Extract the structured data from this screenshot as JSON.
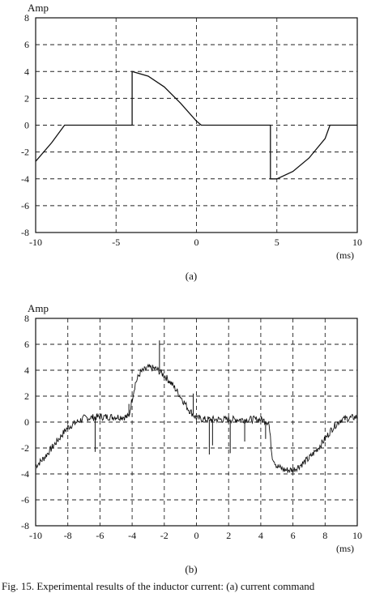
{
  "chart_data": [
    {
      "type": "line",
      "id": "a",
      "ylabel": "Amp",
      "xunit": "(ms)",
      "subcaption": "(a)",
      "xlim": [
        -10,
        10
      ],
      "ylim": [
        -8,
        8
      ],
      "xticks": [
        -10,
        -5,
        0,
        5,
        10
      ],
      "yticks": [
        8,
        6,
        4,
        2,
        0,
        -2,
        -4,
        -6,
        -8
      ],
      "grid": true,
      "series": [
        {
          "x": [
            -10,
            -9,
            -8.2,
            -4,
            -4,
            -3,
            -2,
            -1,
            0,
            0.3,
            4.6,
            4.6,
            5,
            6,
            7,
            8,
            8.3,
            10
          ],
          "y": [
            -2.7,
            -1.3,
            0,
            0,
            4.0,
            3.65,
            2.85,
            1.65,
            0.3,
            0,
            0,
            -4.0,
            -4.0,
            -3.45,
            -2.45,
            -1.0,
            0,
            0
          ]
        }
      ]
    },
    {
      "type": "line",
      "id": "b",
      "ylabel": "Amp",
      "xunit": "(ms)",
      "subcaption": "(b)",
      "xlim": [
        -10,
        10
      ],
      "ylim": [
        -8,
        8
      ],
      "xticks": [
        -10,
        -8,
        -6,
        -4,
        -2,
        0,
        2,
        4,
        6,
        8,
        10
      ],
      "yticks": [
        8,
        6,
        4,
        2,
        0,
        -2,
        -4,
        -6,
        -8
      ],
      "grid": true,
      "noisy": true,
      "series": [
        {
          "x": [
            -10,
            -9.5,
            -9,
            -8.5,
            -8,
            -7,
            -6,
            -5,
            -4.2,
            -4,
            -3.8,
            -3.5,
            -3,
            -2.5,
            -2,
            -1.5,
            -1,
            -0.5,
            0,
            0.5,
            1,
            2,
            3,
            4,
            4.5,
            4.7,
            5,
            5.5,
            6,
            6.5,
            7,
            7.5,
            8,
            8.5,
            9,
            9.5,
            10
          ],
          "y": [
            -3.4,
            -2.8,
            -2.0,
            -1.2,
            -0.4,
            0.3,
            0.4,
            0.4,
            0.4,
            1.8,
            3.0,
            3.8,
            4.2,
            4.1,
            3.6,
            2.9,
            2.0,
            1.0,
            0.3,
            0.2,
            0.2,
            0.2,
            0.2,
            0.2,
            0.0,
            -2.6,
            -3.4,
            -3.7,
            -3.7,
            -3.3,
            -2.8,
            -2.1,
            -1.3,
            -0.4,
            0.2,
            0.3,
            0.4
          ]
        }
      ],
      "spikes": [
        {
          "x": -6.3,
          "y": -2.3
        },
        {
          "x": -4.2,
          "y": 1.4
        },
        {
          "x": -2.3,
          "y": 6.3
        },
        {
          "x": 1.0,
          "y": -1.8
        },
        {
          "x": 2.1,
          "y": -2.4
        },
        {
          "x": 4.3,
          "y": -1.3
        },
        {
          "x": -0.2,
          "y": 2.2
        },
        {
          "x": 3.0,
          "y": -1.5
        },
        {
          "x": 0.8,
          "y": -2.5
        }
      ]
    }
  ],
  "caption": "Fig. 15.   Experimental results of the inductor current: (a) current command"
}
